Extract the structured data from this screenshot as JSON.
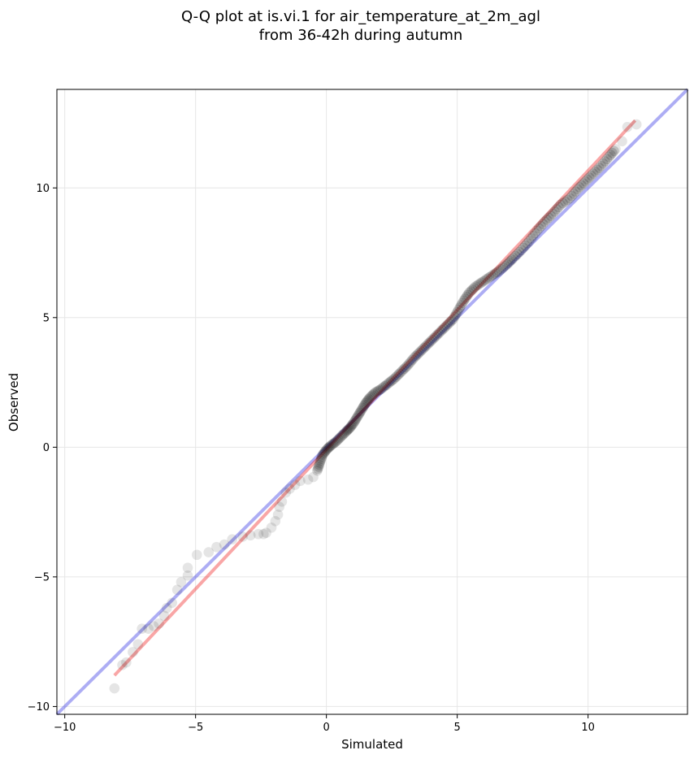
{
  "chart_data": {
    "type": "scatter",
    "title_line1": "Q-Q plot at is.vi.1 for air_temperature_at_2m_agl",
    "title_line2": "from 36-42h during autumn",
    "xlabel": "Simulated",
    "ylabel": "Observed",
    "xlim": [
      -10.3,
      13.8
    ],
    "ylim": [
      -10.3,
      13.8
    ],
    "x_ticks": [
      -10,
      -5,
      0,
      5,
      10
    ],
    "y_ticks": [
      -10,
      -5,
      0,
      5,
      10
    ],
    "x_tick_labels": [
      "−10",
      "−5",
      "0",
      "5",
      "10"
    ],
    "y_tick_labels": [
      "−10",
      "−5",
      "0",
      "5",
      "10"
    ],
    "grid": true,
    "colors": {
      "points": "#000000",
      "identity_line": "#0000dd",
      "fit_line": "#ee0000",
      "grid": "#e6e6e6"
    },
    "identity_line": {
      "x": [
        -10.3,
        13.8
      ],
      "y": [
        -10.3,
        13.8
      ]
    },
    "fit_line": {
      "x": [
        -8.1,
        11.8
      ],
      "y": [
        -8.8,
        12.6
      ]
    },
    "points": [
      [
        -8.1,
        -9.3
      ],
      [
        -7.8,
        -8.4
      ],
      [
        -7.65,
        -8.3
      ],
      [
        -7.4,
        -7.9
      ],
      [
        -7.2,
        -7.6
      ],
      [
        -7.05,
        -7.0
      ],
      [
        -6.8,
        -7.0
      ],
      [
        -6.6,
        -6.9
      ],
      [
        -6.4,
        -6.8
      ],
      [
        -6.2,
        -6.5
      ],
      [
        -6.1,
        -6.2
      ],
      [
        -5.9,
        -6.0
      ],
      [
        -5.7,
        -5.5
      ],
      [
        -5.55,
        -5.2
      ],
      [
        -5.3,
        -4.95
      ],
      [
        -5.3,
        -4.65
      ],
      [
        -4.95,
        -4.15
      ],
      [
        -4.5,
        -4.05
      ],
      [
        -4.2,
        -3.85
      ],
      [
        -3.9,
        -3.75
      ],
      [
        -3.6,
        -3.55
      ],
      [
        -3.2,
        -3.45
      ],
      [
        -2.9,
        -3.4
      ],
      [
        -2.6,
        -3.35
      ],
      [
        -2.4,
        -3.35
      ],
      [
        -2.3,
        -3.3
      ],
      [
        -2.1,
        -3.1
      ],
      [
        -1.95,
        -2.85
      ],
      [
        -1.85,
        -2.6
      ],
      [
        -1.8,
        -2.3
      ],
      [
        -1.7,
        -2.1
      ],
      [
        -1.55,
        -1.75
      ],
      [
        -1.4,
        -1.6
      ],
      [
        -1.2,
        -1.45
      ],
      [
        -1.0,
        -1.3
      ],
      [
        -0.7,
        -1.25
      ],
      [
        -0.5,
        -1.15
      ],
      [
        -0.35,
        -0.9
      ],
      [
        -0.25,
        -0.6
      ],
      [
        -0.15,
        -0.3
      ],
      [
        0.0,
        -0.1
      ],
      [
        0.15,
        0.05
      ],
      [
        0.35,
        0.2
      ],
      [
        0.55,
        0.4
      ],
      [
        0.75,
        0.6
      ],
      [
        0.9,
        0.75
      ],
      [
        1.05,
        0.95
      ],
      [
        1.2,
        1.2
      ],
      [
        1.35,
        1.45
      ],
      [
        1.5,
        1.7
      ],
      [
        1.65,
        1.9
      ],
      [
        1.85,
        2.1
      ],
      [
        2.1,
        2.25
      ],
      [
        2.35,
        2.45
      ],
      [
        2.6,
        2.65
      ],
      [
        2.85,
        2.9
      ],
      [
        3.1,
        3.15
      ],
      [
        3.35,
        3.45
      ],
      [
        3.6,
        3.7
      ],
      [
        3.85,
        3.95
      ],
      [
        4.1,
        4.2
      ],
      [
        4.35,
        4.45
      ],
      [
        4.6,
        4.7
      ],
      [
        4.85,
        4.95
      ],
      [
        5.05,
        5.3
      ],
      [
        5.25,
        5.65
      ],
      [
        5.45,
        5.95
      ],
      [
        5.7,
        6.2
      ],
      [
        6.0,
        6.4
      ],
      [
        6.3,
        6.6
      ],
      [
        6.6,
        6.8
      ],
      [
        6.9,
        7.05
      ],
      [
        7.15,
        7.3
      ],
      [
        7.45,
        7.6
      ],
      [
        7.75,
        7.95
      ],
      [
        8.05,
        8.35
      ],
      [
        8.35,
        8.7
      ],
      [
        8.65,
        9.0
      ],
      [
        8.95,
        9.35
      ],
      [
        9.3,
        9.6
      ],
      [
        9.6,
        9.95
      ],
      [
        9.9,
        10.25
      ],
      [
        10.2,
        10.55
      ],
      [
        10.5,
        10.85
      ],
      [
        10.8,
        11.2
      ],
      [
        11.05,
        11.5
      ],
      [
        11.3,
        11.8
      ],
      [
        11.5,
        12.35
      ],
      [
        11.85,
        12.45
      ]
    ]
  }
}
